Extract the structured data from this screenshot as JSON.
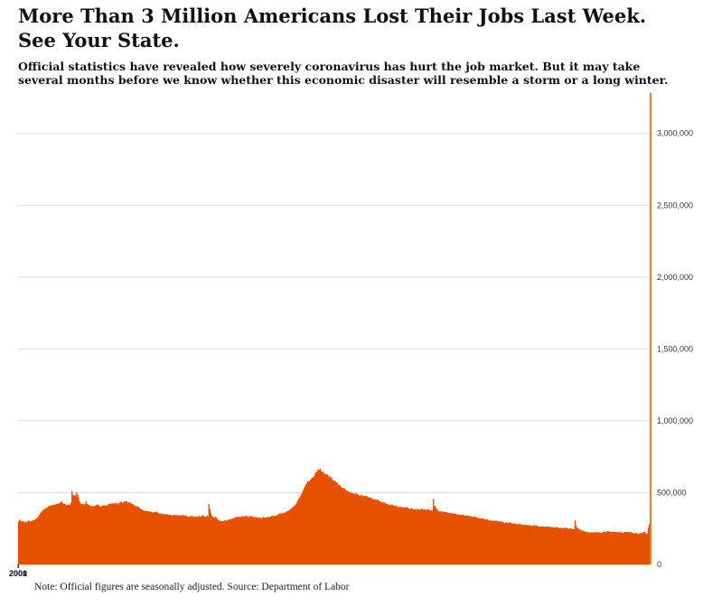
{
  "header": {
    "title": "More Than 3 Million Americans Lost Their Jobs Last Week. See Your State.",
    "subtitle": "Official statistics have revealed how severely coronavirus has hurt the job market. But it may take several months before we know whether this economic disaster will resemble a storm or a long winter."
  },
  "footer": {
    "note": "Note: Official figures are seasonally adjusted. Source: Department of Labor"
  },
  "chart_data": {
    "type": "bar",
    "title": "",
    "xlabel": "",
    "ylabel": "",
    "ylim": [
      0,
      3300000
    ],
    "yticks": [
      0,
      500000,
      1000000,
      1500000,
      2000000,
      2500000,
      3000000
    ],
    "ytick_labels": [
      "0",
      "500,000",
      "1,000,000",
      "1,500,000",
      "2,000,000",
      "2,500,000",
      "3,000,000"
    ],
    "xtick_labels": [
      "2000",
      "2001"
    ],
    "grid": true,
    "bar_color": "#e65100",
    "highlight_color": "#e67e22",
    "y_axis_position": "right",
    "series": [
      {
        "values": [
          300000,
          312000,
          305000,
          298000,
          302000,
          300000,
          292000,
          298000,
          290000,
          300000,
          302000,
          306000,
          295000,
          301000,
          302000,
          307000,
          309000,
          312000,
          316000,
          320000,
          326000,
          335000,
          345000,
          358000,
          368000,
          375000,
          380000,
          385000,
          388000,
          392000,
          396000,
          402000,
          406000,
          408000,
          411000,
          413000,
          414000,
          416000,
          417000,
          418000,
          421000,
          423000,
          424000,
          427000,
          430000,
          440000,
          430000,
          420000,
          422000,
          419000,
          410000,
          414000,
          416000,
          418000,
          411000,
          429000,
          512000,
          485000,
          478000,
          483000,
          479000,
          501000,
          484000,
          463000,
          438000,
          424000,
          423000,
          418000,
          421000,
          412000,
          425000,
          440000,
          421000,
          417000,
          414000,
          409000,
          404000,
          408000,
          404000,
          406000,
          409000,
          411000,
          414000,
          418000,
          412000,
          406000,
          401000,
          405000,
          409000,
          411000,
          413000,
          408000,
          411000,
          408000,
          416000,
          423000,
          421000,
          421000,
          427000,
          420000,
          421000,
          426000,
          427000,
          419000,
          427000,
          419000,
          430000,
          434000,
          437000,
          429000,
          431000,
          438000,
          440000,
          442000,
          436000,
          430000,
          432000,
          433000,
          425000,
          423000,
          420000,
          414000,
          410000,
          404000,
          404000,
          404000,
          401000,
          393000,
          389000,
          383000,
          380000,
          377000,
          374000,
          374000,
          372000,
          370000,
          371000,
          369000,
          365000,
          367000,
          364000,
          361000,
          362000,
          366000,
          364000,
          368000,
          361000,
          359000,
          352000,
          355000,
          351000,
          355000,
          349000,
          350000,
          348000,
          353000,
          348000,
          347000,
          345000,
          346000,
          345000,
          340000,
          341000,
          344000,
          345000,
          342000,
          343000,
          344000,
          340000,
          339000,
          342000,
          339000,
          344000,
          343000,
          341000,
          339000,
          342000,
          333000,
          330000,
          333000,
          333000,
          333000,
          340000,
          335000,
          334000,
          333000,
          330000,
          335000,
          328000,
          335000,
          339000,
          331000,
          333000,
          340000,
          343000,
          333000,
          331000,
          334000,
          341000,
          330000,
          420000,
          386000,
          360000,
          340000,
          334000,
          327000,
          328000,
          331000,
          325000,
          315000,
          308000,
          305000,
          303000,
          303000,
          301000,
          302000,
          306000,
          308000,
          303000,
          306000,
          308000,
          315000,
          312000,
          315000,
          318000,
          320000,
          322000,
          325000,
          328000,
          331000,
          332000,
          330000,
          332000,
          327000,
          333000,
          336000,
          334000,
          333000,
          337000,
          338000,
          330000,
          337000,
          328000,
          334000,
          336000,
          338000,
          331000,
          328000,
          331000,
          328000,
          330000,
          326000,
          326000,
          326000,
          325000,
          321000,
          324000,
          331000,
          327000,
          324000,
          326000,
          329000,
          330000,
          331000,
          327000,
          334000,
          337000,
          339000,
          336000,
          338000,
          341000,
          341000,
          344000,
          349000,
          355000,
          350000,
          359000,
          354000,
          357000,
          360000,
          359000,
          365000,
          370000,
          371000,
          375000,
          380000,
          386000,
          390000,
          398000,
          404000,
          409000,
          418000,
          425000,
          439000,
          451000,
          464000,
          473000,
          487000,
          499000,
          516000,
          531000,
          543000,
          556000,
          567000,
          577000,
          580000,
          582000,
          591000,
          599000,
          605000,
          607000,
          617000,
          636000,
          645000,
          650000,
          662000,
          658000,
          665000,
          650000,
          642000,
          647000,
          634000,
          628000,
          631000,
          627000,
          624000,
          609000,
          615000,
          602000,
          606000,
          587000,
          584000,
          583000,
          578000,
          571000,
          565000,
          555000,
          553000,
          551000,
          536000,
          535000,
          531000,
          531000,
          527000,
          515000,
          512000,
          513000,
          505000,
          500000,
          505000,
          496000,
          495000,
          497000,
          490000,
          494000,
          494000,
          488000,
          488000,
          480000,
          478000,
          482000,
          483000,
          473000,
          478000,
          477000,
          476000,
          476000,
          471000,
          465000,
          467000,
          465000,
          462000,
          457000,
          451000,
          456000,
          452000,
          446000,
          455000,
          446000,
          443000,
          439000,
          432000,
          433000,
          429000,
          433000,
          430000,
          423000,
          421000,
          420000,
          414000,
          411000,
          419000,
          414000,
          416000,
          409000,
          404000,
          411000,
          404000,
          407000,
          397000,
          397000,
          406000,
          398000,
          399000,
          397000,
          396000,
          394000,
          398000,
          398000,
          395000,
          388000,
          383000,
          388000,
          392000,
          389000,
          382000,
          384000,
          385000,
          379000,
          389000,
          381000,
          385000,
          380000,
          386000,
          389000,
          382000,
          383000,
          381000,
          383000,
          377000,
          385000,
          384000,
          378000,
          376000,
          377000,
          376000,
          454000,
          407000,
          407000,
          390000,
          384000,
          372000,
          369000,
          369000,
          368000,
          368000,
          365000,
          368000,
          365000,
          365000,
          362000,
          361000,
          357000,
          359000,
          358000,
          354000,
          356000,
          356000,
          353000,
          354000,
          351000,
          347000,
          349000,
          344000,
          345000,
          345000,
          346000,
          344000,
          344000,
          339000,
          340000,
          339000,
          340000,
          339000,
          336000,
          337000,
          333000,
          330000,
          331000,
          334000,
          330000,
          327000,
          326000,
          323000,
          322000,
          321000,
          321000,
          321000,
          322000,
          317000,
          313000,
          312000,
          316000,
          311000,
          307000,
          306000,
          307000,
          305000,
          301000,
          307000,
          303000,
          304000,
          306000,
          302000,
          302000,
          296000,
          300000,
          300000,
          294000,
          297000,
          290000,
          287000,
          293000,
          291000,
          288000,
          291000,
          293000,
          290000,
          288000,
          284000,
          285000,
          285000,
          285000,
          281000,
          279000,
          280000,
          285000,
          279000,
          280000,
          278000,
          274000,
          276000,
          273000,
          278000,
          272000,
          275000,
          272000,
          275000,
          269000,
          271000,
          269000,
          272000,
          274000,
          271000,
          270000,
          270000,
          263000,
          265000,
          264000,
          263000,
          264000,
          266000,
          266000,
          262000,
          263000,
          263000,
          263000,
          264000,
          262000,
          260000,
          261000,
          260000,
          257000,
          257000,
          260000,
          258000,
          260000,
          256000,
          254000,
          252000,
          256000,
          253000,
          254000,
          254000,
          253000,
          256000,
          255000,
          251000,
          246000,
          253000,
          249000,
          250000,
          246000,
          246000,
          244000,
          306000,
          271000,
          257000,
          253000,
          246000,
          245000,
          237000,
          237000,
          238000,
          230000,
          231000,
          229000,
          225000,
          225000,
          226000,
          223000,
          223000,
          224000,
          224000,
          221000,
          225000,
          223000,
          225000,
          223000,
          226000,
          223000,
          223000,
          219000,
          220000,
          225000,
          226000,
          229000,
          225000,
          226000,
          232000,
          233000,
          228000,
          228000,
          225000,
          228000,
          227000,
          227000,
          224000,
          227000,
          226000,
          225000,
          224000,
          223000,
          230000,
          219000,
          221000,
          222000,
          226000,
          227000,
          226000,
          226000,
          227000,
          223000,
          228000,
          224000,
          218000,
          221000,
          215000,
          214000,
          222000,
          218000,
          211000,
          214000,
          216000,
          219000,
          215000,
          221000,
          226000,
          227000,
          220000,
          209000,
          217000,
          258000,
          278000,
          3283000
        ]
      }
    ]
  }
}
